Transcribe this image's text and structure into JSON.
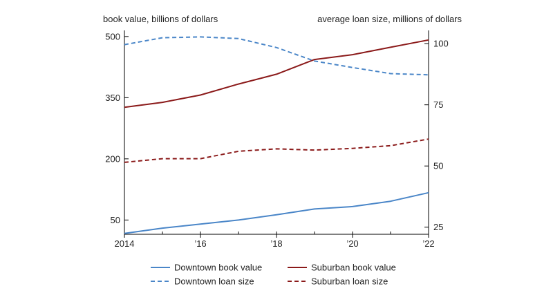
{
  "chart_data": {
    "type": "line",
    "title": "",
    "ylabel_left": "book value, billions of dollars",
    "ylabel_right": "average loan size, millions of dollars",
    "x": [
      2014,
      2015,
      2016,
      2017,
      2018,
      2019,
      2020,
      2021,
      2022
    ],
    "x_ticks": [
      {
        "value": 2014,
        "label": "2014"
      },
      {
        "value": 2016,
        "label": "’16"
      },
      {
        "value": 2018,
        "label": "’18"
      },
      {
        "value": 2020,
        "label": "’20"
      },
      {
        "value": 2022,
        "label": "’22"
      }
    ],
    "xlim": [
      2014,
      2022
    ],
    "ylim_left": [
      15,
      515
    ],
    "yticks_left": [
      50,
      200,
      350,
      500
    ],
    "ylim_right": [
      22.1,
      105.4
    ],
    "yticks_right": [
      25,
      50,
      75,
      100
    ],
    "grid": false,
    "legend": "bottom",
    "series": [
      {
        "name": "Downtown book value",
        "axis": "left",
        "style": "solid",
        "color": "#4a86c8",
        "values": [
          17,
          30,
          40,
          50,
          63,
          77,
          83,
          96,
          117
        ]
      },
      {
        "name": "Suburban book value",
        "axis": "right",
        "style": "solid",
        "color": "#8b1a1a",
        "values": [
          74,
          76,
          79,
          83.5,
          87.5,
          93.5,
          95.5,
          98.5,
          101.5
        ]
      },
      {
        "name": "Downtown loan size",
        "axis": "left",
        "style": "dashed",
        "color": "#4a86c8",
        "values": [
          480,
          497,
          499,
          495,
          473,
          440,
          424,
          409,
          406
        ]
      },
      {
        "name": "Suburban loan size",
        "axis": "right",
        "style": "dashed",
        "color": "#8b1a1a",
        "values": [
          51.5,
          53,
          53,
          56,
          57,
          56.5,
          57.2,
          58.3,
          61
        ]
      }
    ],
    "legend_order": [
      "Downtown book value",
      "Suburban book value",
      "Downtown loan size",
      "Suburban loan size"
    ]
  }
}
